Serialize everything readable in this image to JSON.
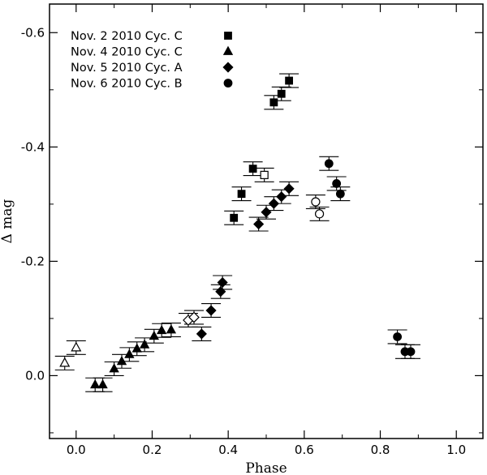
{
  "chart_data": {
    "type": "scatter",
    "xlabel": "Phase",
    "ylabel": "Δ mag",
    "xlim": [
      -0.07,
      1.07
    ],
    "ylim": [
      0.11,
      -0.65
    ],
    "y_axis_inverted": true,
    "x_ticks": [
      0.0,
      0.2,
      0.4,
      0.6,
      0.8,
      1.0
    ],
    "x_tick_labels": [
      "0.0",
      "0.2",
      "0.4",
      "0.6",
      "0.8",
      "1.0"
    ],
    "y_ticks": [
      0.0,
      -0.2,
      -0.4,
      -0.6
    ],
    "y_tick_labels": [
      "0.0",
      "-0.2",
      "-0.4",
      "-0.6"
    ],
    "grid": false,
    "legend_position": "top-left",
    "error_bar_half_width": 0.012,
    "series": [
      {
        "name": "Nov. 2  2010 Cyc. C",
        "marker": "square",
        "points": [
          {
            "x": 0.415,
            "y": -0.276,
            "open": false
          },
          {
            "x": 0.435,
            "y": -0.318,
            "open": false
          },
          {
            "x": 0.465,
            "y": -0.362,
            "open": false
          },
          {
            "x": 0.495,
            "y": -0.351,
            "open": true
          },
          {
            "x": 0.52,
            "y": -0.478,
            "open": false
          },
          {
            "x": 0.54,
            "y": -0.493,
            "open": false
          },
          {
            "x": 0.56,
            "y": -0.516,
            "open": false
          }
        ]
      },
      {
        "name": "Nov. 4  2010 Cyc. C",
        "marker": "triangle",
        "points": [
          {
            "x": -0.03,
            "y": -0.022,
            "open": true
          },
          {
            "x": 0.0,
            "y": -0.049,
            "open": true
          },
          {
            "x": 0.05,
            "y": 0.016,
            "open": false
          },
          {
            "x": 0.07,
            "y": 0.016,
            "open": false
          },
          {
            "x": 0.1,
            "y": -0.012,
            "open": false
          },
          {
            "x": 0.12,
            "y": -0.025,
            "open": false
          },
          {
            "x": 0.14,
            "y": -0.037,
            "open": false
          },
          {
            "x": 0.16,
            "y": -0.047,
            "open": false
          },
          {
            "x": 0.18,
            "y": -0.054,
            "open": false
          },
          {
            "x": 0.205,
            "y": -0.069,
            "open": false
          },
          {
            "x": 0.225,
            "y": -0.079,
            "open": false
          },
          {
            "x": 0.25,
            "y": -0.08,
            "open": false
          }
        ]
      },
      {
        "name": "Nov. 5  2010 Cyc. A",
        "marker": "diamond",
        "points": [
          {
            "x": 0.295,
            "y": -0.097,
            "open": true
          },
          {
            "x": 0.31,
            "y": -0.102,
            "open": true
          },
          {
            "x": 0.33,
            "y": -0.073,
            "open": false
          },
          {
            "x": 0.355,
            "y": -0.114,
            "open": false
          },
          {
            "x": 0.38,
            "y": -0.147,
            "open": false
          },
          {
            "x": 0.385,
            "y": -0.163,
            "open": false
          },
          {
            "x": 0.48,
            "y": -0.265,
            "open": false
          },
          {
            "x": 0.5,
            "y": -0.286,
            "open": false
          },
          {
            "x": 0.52,
            "y": -0.301,
            "open": false
          },
          {
            "x": 0.54,
            "y": -0.313,
            "open": false
          },
          {
            "x": 0.56,
            "y": -0.327,
            "open": false
          }
        ]
      },
      {
        "name": "Nov. 6  2010 Cyc. B",
        "marker": "circle",
        "points": [
          {
            "x": 0.63,
            "y": -0.304,
            "open": true
          },
          {
            "x": 0.64,
            "y": -0.283,
            "open": true
          },
          {
            "x": 0.665,
            "y": -0.371,
            "open": false
          },
          {
            "x": 0.685,
            "y": -0.336,
            "open": false
          },
          {
            "x": 0.695,
            "y": -0.318,
            "open": false
          },
          {
            "x": 0.845,
            "y": -0.068,
            "open": false
          },
          {
            "x": 0.865,
            "y": -0.042,
            "open": false
          },
          {
            "x": 0.88,
            "y": -0.042,
            "open": false
          }
        ]
      }
    ]
  }
}
